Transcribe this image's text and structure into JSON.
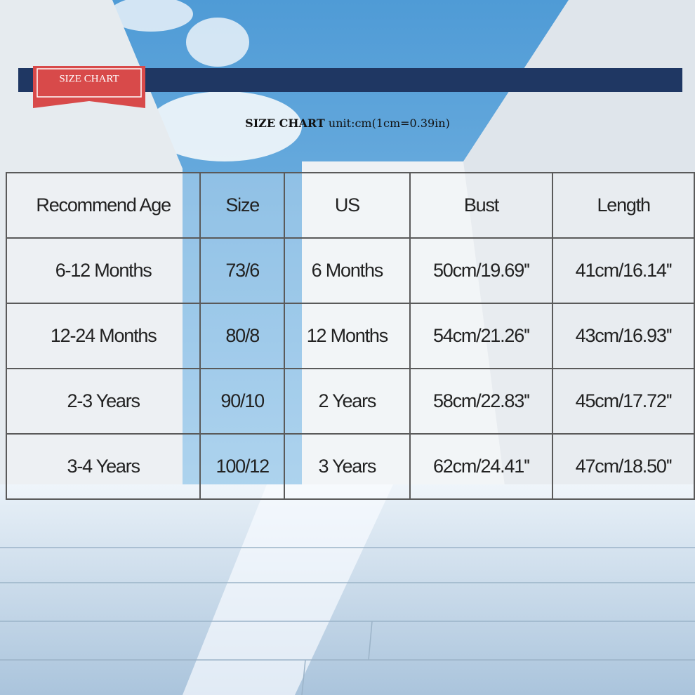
{
  "badge": "SIZE CHART",
  "heading": {
    "bold": "SIZE CHART",
    "rest": "unit:cm(1cm=0.39in)"
  },
  "table": {
    "header": [
      "Recommend Age",
      "Size",
      "US",
      "Bust",
      "Length"
    ],
    "rows": [
      [
        "6-12 Months",
        "73/6",
        "6 Months",
        "50cm/19.69''",
        "41cm/16.14''"
      ],
      [
        "12-24 Months",
        "80/8",
        "12 Months",
        "54cm/21.26''",
        "43cm/16.93''"
      ],
      [
        "2-3 Years",
        "90/10",
        "2 Years",
        "58cm/22.83''",
        "45cm/17.72''"
      ],
      [
        "3-4 Years",
        "100/12",
        "3 Years",
        "62cm/24.41''",
        "47cm/18.50''"
      ]
    ]
  }
}
